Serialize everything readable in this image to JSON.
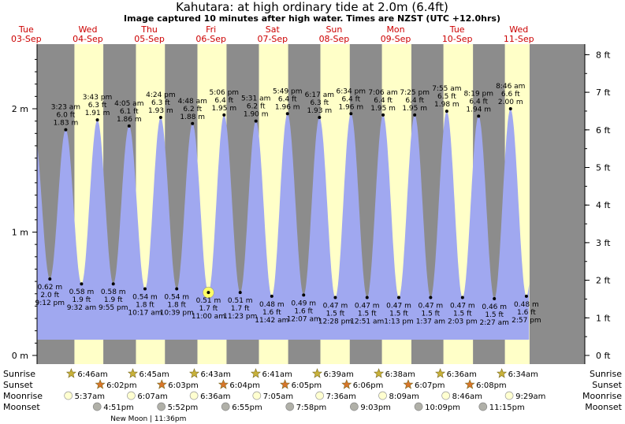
{
  "header": {
    "title": "Kahutara: at high  ordinary tide at 2.0m (6.4ft)",
    "subtitle": "Image captured 10 minutes after high water. Times are NZST (UTC +12.0hrs)"
  },
  "colors": {
    "night": "#8c8c8c",
    "day": "#ffffc8",
    "tide": "#a0a8f0",
    "date_label": "#cc0000",
    "current_marker": "#ffff66"
  },
  "days": [
    {
      "dow": "Tue",
      "date": "03-Sep"
    },
    {
      "dow": "Wed",
      "date": "04-Sep"
    },
    {
      "dow": "Thu",
      "date": "05-Sep"
    },
    {
      "dow": "Fri",
      "date": "06-Sep"
    },
    {
      "dow": "Sat",
      "date": "07-Sep"
    },
    {
      "dow": "Sun",
      "date": "08-Sep"
    },
    {
      "dow": "Mon",
      "date": "09-Sep"
    },
    {
      "dow": "Tue",
      "date": "10-Sep"
    },
    {
      "dow": "Wed",
      "date": "11-Sep"
    }
  ],
  "chart_data": {
    "type": "area",
    "title": "Kahutara: at high  ordinary tide at 2.0m (6.4ft)",
    "left_axis": {
      "unit": "m",
      "ticks": [
        "0 m",
        "1 m",
        "2 m"
      ],
      "values": [
        0,
        1,
        2
      ]
    },
    "right_axis": {
      "unit": "ft",
      "ticks": [
        "0 ft",
        "1 ft",
        "2 ft",
        "3 ft",
        "4 ft",
        "5 ft",
        "6 ft",
        "7 ft",
        "8 ft"
      ],
      "values": [
        0,
        1,
        2,
        3,
        4,
        5,
        6,
        7,
        8
      ]
    },
    "ylim_m": [
      0,
      2.5
    ],
    "start_hours": 16.2,
    "end_hours": 208.2,
    "current_event_index": 10,
    "events": [
      {
        "type": "low",
        "t_hours": 21.2,
        "time": "9:12 pm",
        "m": 0.62,
        "m_label": "0.62 m",
        "ft_label": "2.0 ft"
      },
      {
        "type": "high",
        "t_hours": 27.383,
        "time": "3:23 am",
        "m": 1.83,
        "m_label": "1.83 m",
        "ft_label": "6.0 ft"
      },
      {
        "type": "low",
        "t_hours": 33.533,
        "time": "9:32 am",
        "m": 0.58,
        "m_label": "0.58 m",
        "ft_label": "1.9 ft"
      },
      {
        "type": "high",
        "t_hours": 39.717,
        "time": "3:43 pm",
        "m": 1.91,
        "m_label": "1.91 m",
        "ft_label": "6.3 ft"
      },
      {
        "type": "low",
        "t_hours": 45.917,
        "time": "9:55 pm",
        "m": 0.58,
        "m_label": "0.58 m",
        "ft_label": "1.9 ft"
      },
      {
        "type": "high",
        "t_hours": 52.083,
        "time": "4:05 am",
        "m": 1.86,
        "m_label": "1.86 m",
        "ft_label": "6.1 ft"
      },
      {
        "type": "low",
        "t_hours": 58.283,
        "time": "10:17 am",
        "m": 0.54,
        "m_label": "0.54 m",
        "ft_label": "1.8 ft"
      },
      {
        "type": "high",
        "t_hours": 64.4,
        "time": "4:24 pm",
        "m": 1.93,
        "m_label": "1.93 m",
        "ft_label": "6.3 ft"
      },
      {
        "type": "low",
        "t_hours": 70.65,
        "time": "10:39 pm",
        "m": 0.54,
        "m_label": "0.54 m",
        "ft_label": "1.8 ft"
      },
      {
        "type": "high",
        "t_hours": 76.8,
        "time": "4:48 am",
        "m": 1.88,
        "m_label": "1.88 m",
        "ft_label": "6.2 ft"
      },
      {
        "type": "low",
        "t_hours": 83.0,
        "time": "11:00 am",
        "m": 0.51,
        "m_label": "0.51 m",
        "ft_label": "1.7 ft"
      },
      {
        "type": "high",
        "t_hours": 89.1,
        "time": "5:06 pm",
        "m": 1.95,
        "m_label": "1.95 m",
        "ft_label": "6.4 ft"
      },
      {
        "type": "low",
        "t_hours": 95.383,
        "time": "11:23 pm",
        "m": 0.51,
        "m_label": "0.51 m",
        "ft_label": "1.7 ft"
      },
      {
        "type": "high",
        "t_hours": 101.517,
        "time": "5:31 am",
        "m": 1.9,
        "m_label": "1.90 m",
        "ft_label": "6.2 ft"
      },
      {
        "type": "low",
        "t_hours": 107.7,
        "time": "11:42 am",
        "m": 0.48,
        "m_label": "0.48 m",
        "ft_label": "1.6 ft"
      },
      {
        "type": "high",
        "t_hours": 113.817,
        "time": "5:49 pm",
        "m": 1.96,
        "m_label": "1.96 m",
        "ft_label": "6.4 ft"
      },
      {
        "type": "low",
        "t_hours": 120.117,
        "time": "12:07 am",
        "m": 0.49,
        "m_label": "0.49 m",
        "ft_label": "1.6 ft"
      },
      {
        "type": "high",
        "t_hours": 126.283,
        "time": "6:17 am",
        "m": 1.93,
        "m_label": "1.93 m",
        "ft_label": "6.3 ft"
      },
      {
        "type": "low",
        "t_hours": 132.467,
        "time": "12:28 pm",
        "m": 0.47,
        "m_label": "0.47 m",
        "ft_label": "1.5 ft"
      },
      {
        "type": "high",
        "t_hours": 138.567,
        "time": "6:34 pm",
        "m": 1.96,
        "m_label": "1.96 m",
        "ft_label": "6.4 ft"
      },
      {
        "type": "low",
        "t_hours": 144.85,
        "time": "12:51 am",
        "m": 0.47,
        "m_label": "0.47 m",
        "ft_label": "1.5 ft"
      },
      {
        "type": "high",
        "t_hours": 151.1,
        "time": "7:06 am",
        "m": 1.95,
        "m_label": "1.95 m",
        "ft_label": "6.4 ft"
      },
      {
        "type": "low",
        "t_hours": 157.217,
        "time": "1:13 pm",
        "m": 0.47,
        "m_label": "0.47 m",
        "ft_label": "1.5 ft"
      },
      {
        "type": "high",
        "t_hours": 163.417,
        "time": "7:25 pm",
        "m": 1.95,
        "m_label": "1.95 m",
        "ft_label": "6.4 ft"
      },
      {
        "type": "low",
        "t_hours": 169.617,
        "time": "1:37 am",
        "m": 0.47,
        "m_label": "0.47 m",
        "ft_label": "1.5 ft"
      },
      {
        "type": "high",
        "t_hours": 175.917,
        "time": "7:55 am",
        "m": 1.98,
        "m_label": "1.98 m",
        "ft_label": "6.5 ft"
      },
      {
        "type": "low",
        "t_hours": 182.05,
        "time": "2:03 pm",
        "m": 0.47,
        "m_label": "0.47 m",
        "ft_label": "1.5 ft"
      },
      {
        "type": "high",
        "t_hours": 188.317,
        "time": "8:19 pm",
        "m": 1.94,
        "m_label": "1.94 m",
        "ft_label": "6.4 ft"
      },
      {
        "type": "low",
        "t_hours": 194.45,
        "time": "2:27 am",
        "m": 0.46,
        "m_label": "0.46 m",
        "ft_label": "1.5 ft"
      },
      {
        "type": "high",
        "t_hours": 200.767,
        "time": "8:46 am",
        "m": 2.0,
        "m_label": "2.00 m",
        "ft_label": "6.6 ft"
      },
      {
        "type": "low",
        "t_hours": 206.95,
        "time": "2:57 pm",
        "m": 0.48,
        "m_label": "0.48 m",
        "ft_label": "1.6 ft"
      }
    ],
    "daylight": [
      {
        "sunrise_h": 30.767,
        "sunset_h": 42.033
      },
      {
        "sunrise_h": 54.75,
        "sunset_h": 66.05
      },
      {
        "sunrise_h": 78.717,
        "sunset_h": 90.067
      },
      {
        "sunrise_h": 102.683,
        "sunset_h": 114.083
      },
      {
        "sunrise_h": 126.65,
        "sunset_h": 138.1
      },
      {
        "sunrise_h": 150.633,
        "sunset_h": 162.117
      },
      {
        "sunrise_h": 174.6,
        "sunset_h": 186.133
      },
      {
        "sunrise_h": 198.567,
        "sunset_h": 208.2
      }
    ]
  },
  "almanac": {
    "labels": {
      "sunrise": "Sunrise",
      "sunset": "Sunset",
      "moonrise": "Moonrise",
      "moonset": "Moonset"
    },
    "sunrise": [
      {
        "t_hours": 30.767,
        "time": "6:46am"
      },
      {
        "t_hours": 54.75,
        "time": "6:45am"
      },
      {
        "t_hours": 78.717,
        "time": "6:43am"
      },
      {
        "t_hours": 102.683,
        "time": "6:41am"
      },
      {
        "t_hours": 126.65,
        "time": "6:39am"
      },
      {
        "t_hours": 150.633,
        "time": "6:38am"
      },
      {
        "t_hours": 174.6,
        "time": "6:36am"
      },
      {
        "t_hours": 198.567,
        "time": "6:34am"
      }
    ],
    "sunset": [
      {
        "t_hours": 42.033,
        "time": "6:02pm"
      },
      {
        "t_hours": 66.05,
        "time": "6:03pm"
      },
      {
        "t_hours": 90.067,
        "time": "6:04pm"
      },
      {
        "t_hours": 114.083,
        "time": "6:05pm"
      },
      {
        "t_hours": 138.1,
        "time": "6:06pm"
      },
      {
        "t_hours": 162.117,
        "time": "6:07pm"
      },
      {
        "t_hours": 186.133,
        "time": "6:08pm"
      }
    ],
    "moonrise": [
      {
        "t_hours": 29.617,
        "time": "5:37am"
      },
      {
        "t_hours": 54.117,
        "time": "6:07am"
      },
      {
        "t_hours": 78.6,
        "time": "6:36am"
      },
      {
        "t_hours": 103.083,
        "time": "7:05am"
      },
      {
        "t_hours": 127.6,
        "time": "7:36am"
      },
      {
        "t_hours": 152.15,
        "time": "8:09am"
      },
      {
        "t_hours": 176.767,
        "time": "8:46am"
      },
      {
        "t_hours": 201.483,
        "time": "9:29am"
      }
    ],
    "moonset": [
      {
        "t_hours": 40.85,
        "time": "4:51pm"
      },
      {
        "t_hours": 65.867,
        "time": "5:52pm"
      },
      {
        "t_hours": 90.917,
        "time": "6:55pm"
      },
      {
        "t_hours": 115.967,
        "time": "7:58pm"
      },
      {
        "t_hours": 141.05,
        "time": "9:03pm"
      },
      {
        "t_hours": 166.15,
        "time": "10:09pm"
      },
      {
        "t_hours": 191.25,
        "time": "11:15pm"
      }
    ],
    "new_moon": {
      "t_hours": 59.6,
      "text": "New Moon | 11:36pm"
    }
  }
}
